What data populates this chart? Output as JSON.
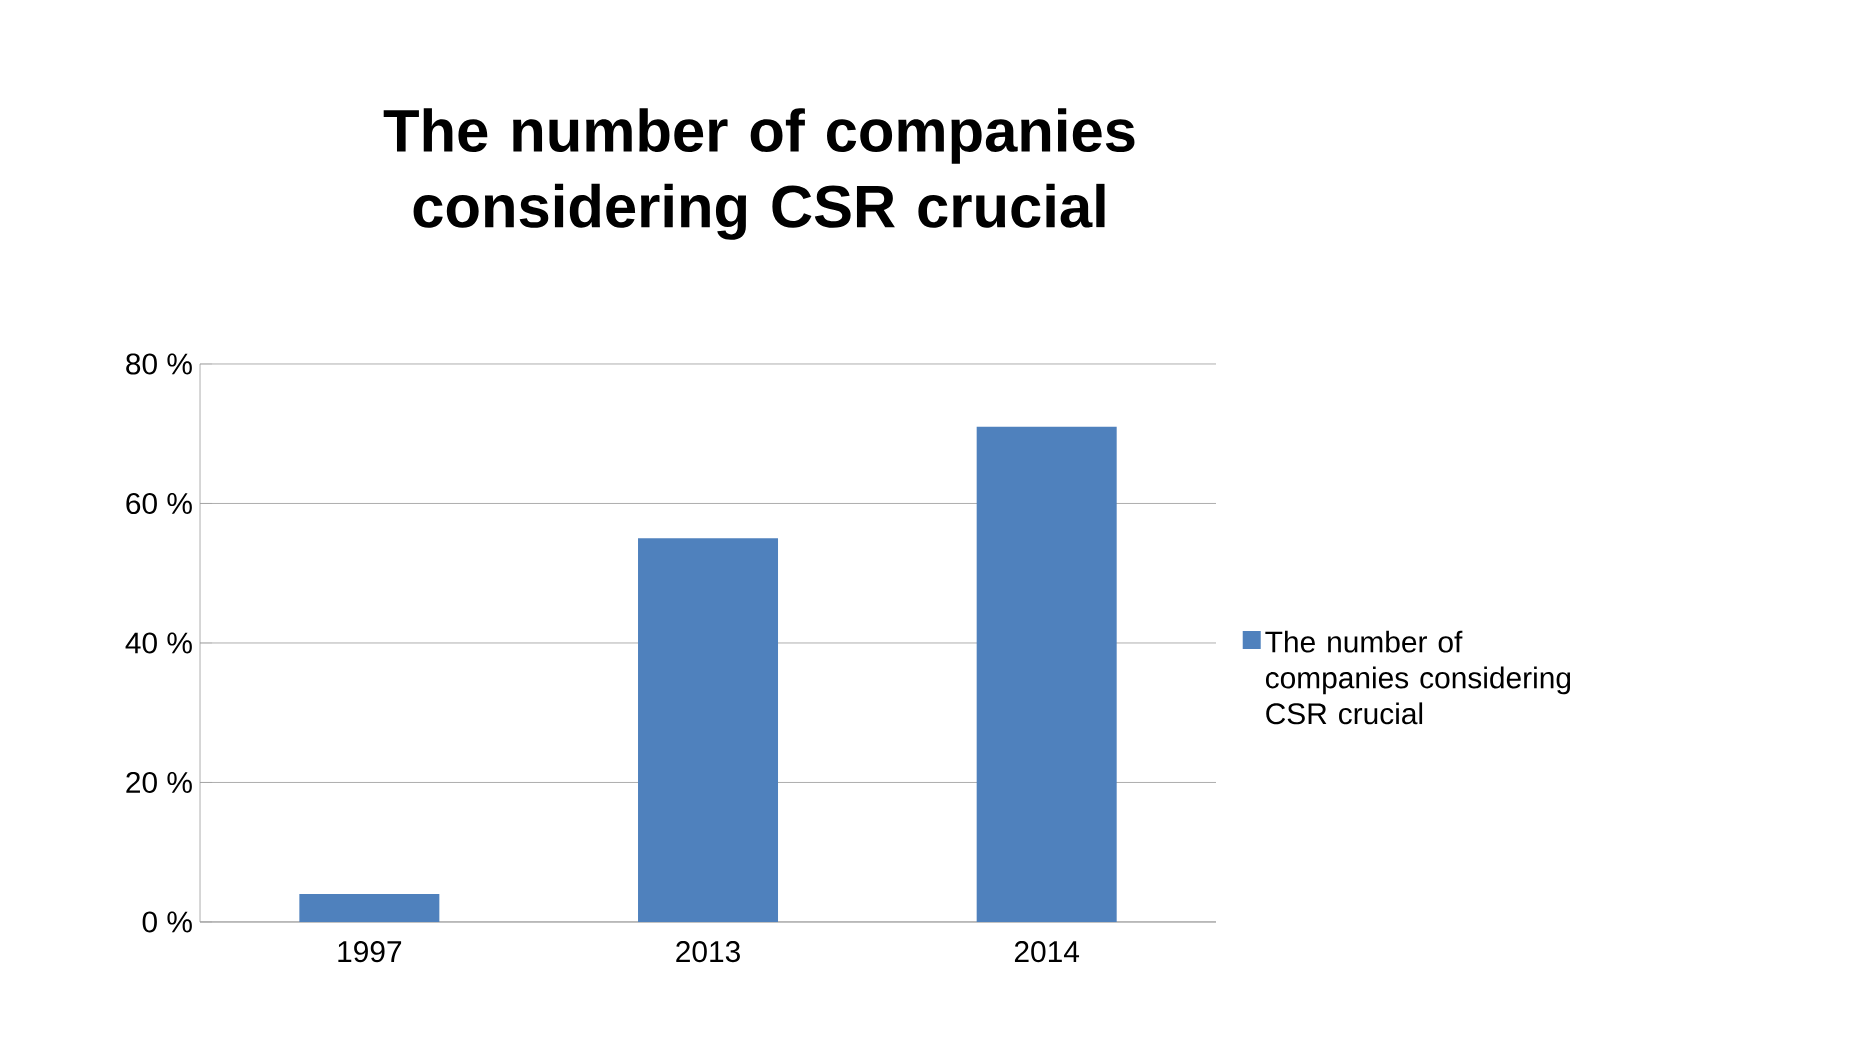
{
  "chart_data": {
    "type": "bar",
    "title": "The number of companies considering CSR crucial",
    "categories": [
      "1997",
      "2013",
      "2014"
    ],
    "series": [
      {
        "name": "The number of companies considering CSR crucial",
        "color": "#4f81bd",
        "values": [
          4,
          55,
          71
        ]
      }
    ],
    "ylim": [
      0,
      80
    ],
    "yticks": [
      {
        "value": 0,
        "label": "0 %"
      },
      {
        "value": 20,
        "label": "20 %"
      },
      {
        "value": 40,
        "label": "40 %"
      },
      {
        "value": 60,
        "label": "60 %"
      },
      {
        "value": 80,
        "label": "80 %"
      }
    ],
    "grid": "y",
    "legend": "right"
  }
}
